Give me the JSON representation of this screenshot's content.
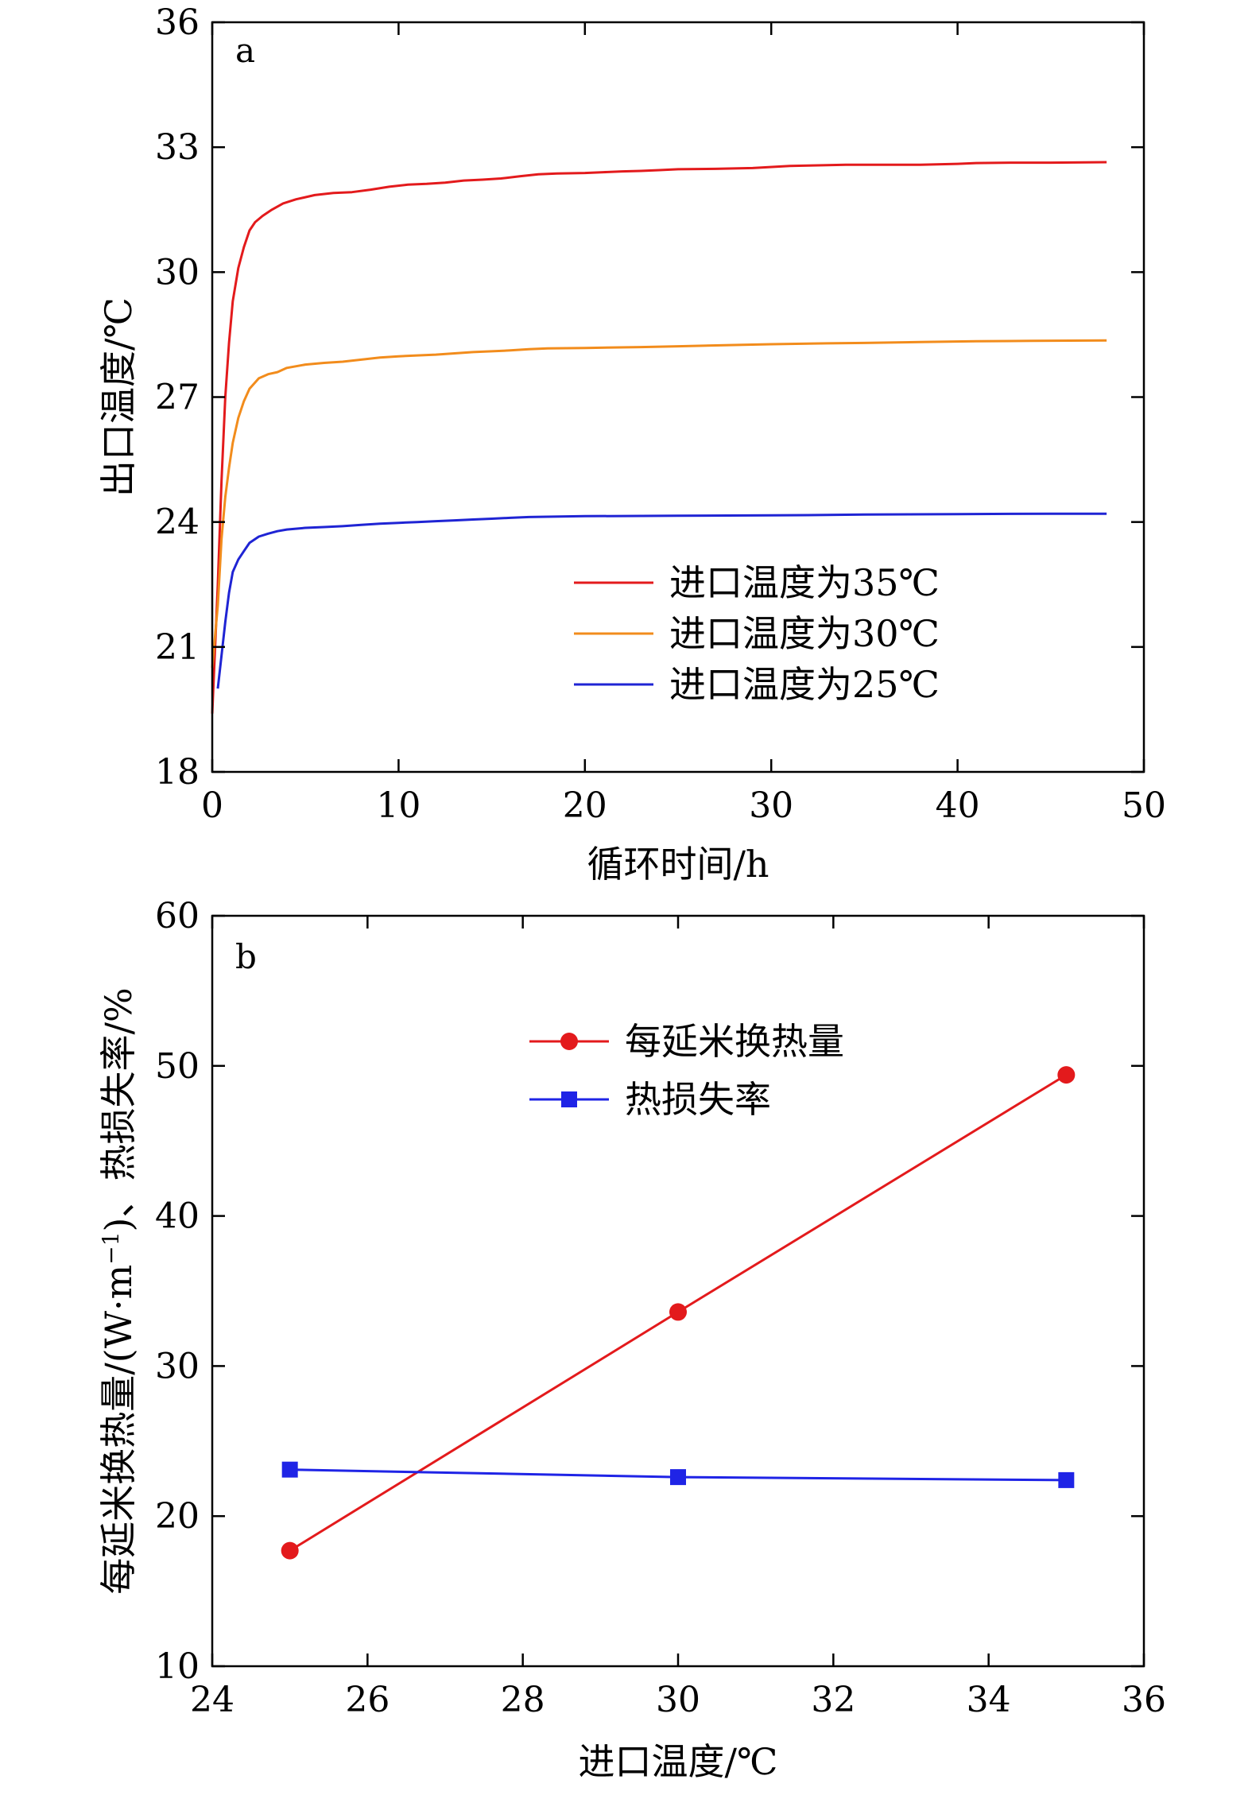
{
  "chart_data": [
    {
      "type": "line",
      "panel_label": "a",
      "xlabel": "循环时间/h",
      "ylabel": "出口温度/℃",
      "xlim": [
        0,
        50
      ],
      "ylim": [
        18,
        36
      ],
      "xticks": [
        0,
        10,
        20,
        30,
        40,
        50
      ],
      "yticks": [
        18,
        21,
        24,
        27,
        30,
        33,
        36
      ],
      "xtick_labels": [
        "0",
        "10",
        "20",
        "30",
        "40",
        "50"
      ],
      "ytick_labels": [
        "18",
        "21",
        "24",
        "27",
        "30",
        "33",
        "36"
      ],
      "grid": false,
      "legend_position": "lower-right",
      "series": [
        {
          "name": "进口温度为35℃",
          "color": "#e31a1c",
          "x": [
            0.0,
            0.3,
            0.5,
            0.7,
            0.9,
            1.1,
            1.4,
            1.7,
            2.0,
            2.3,
            2.7,
            3.2,
            3.8,
            4.5,
            5.5,
            6.5,
            7.5,
            8.5,
            9.5,
            10.5,
            11.5,
            12.5,
            13.5,
            14.5,
            15.5,
            16.5,
            17.5,
            18.5,
            20.0,
            21.0,
            22.0,
            23.0,
            24.0,
            25.0,
            27.0,
            29.0,
            31.0,
            32.0,
            34.0,
            36.0,
            38.0,
            40.0,
            41.0,
            43.0,
            45.0,
            48.0
          ],
          "values": [
            19.4,
            22.5,
            25.0,
            27.0,
            28.3,
            29.3,
            30.1,
            30.6,
            31.0,
            31.2,
            31.35,
            31.5,
            31.65,
            31.75,
            31.85,
            31.9,
            31.92,
            31.98,
            32.05,
            32.1,
            32.12,
            32.15,
            32.2,
            32.22,
            32.25,
            32.3,
            32.35,
            32.37,
            32.38,
            32.4,
            32.42,
            32.43,
            32.45,
            32.47,
            32.48,
            32.5,
            32.55,
            32.56,
            32.58,
            32.58,
            32.58,
            32.6,
            32.62,
            32.63,
            32.63,
            32.64
          ]
        },
        {
          "name": "进口温度为30℃",
          "color": "#f28c1c",
          "x": [
            0.0,
            0.3,
            0.5,
            0.7,
            0.9,
            1.1,
            1.4,
            1.7,
            2.0,
            2.5,
            3.0,
            3.5,
            4.0,
            5.0,
            6.0,
            7.0,
            8.0,
            9.0,
            10.0,
            11.0,
            12.0,
            13.0,
            14.0,
            15.0,
            16.0,
            17.0,
            18.0,
            20.0,
            23.0,
            25.0,
            28.0,
            30.0,
            33.0,
            35.0,
            38.0,
            41.0,
            44.0,
            48.0
          ],
          "values": [
            20.5,
            22.0,
            23.6,
            24.6,
            25.3,
            25.9,
            26.5,
            26.9,
            27.2,
            27.45,
            27.55,
            27.6,
            27.7,
            27.78,
            27.82,
            27.85,
            27.9,
            27.95,
            27.98,
            28.0,
            28.02,
            28.05,
            28.08,
            28.1,
            28.12,
            28.15,
            28.17,
            28.18,
            28.2,
            28.22,
            28.25,
            28.27,
            28.29,
            28.3,
            28.32,
            28.34,
            28.35,
            28.36
          ]
        },
        {
          "name": "进口温度为25℃",
          "color": "#1f24d4",
          "x": [
            0.3,
            0.5,
            0.7,
            0.9,
            1.1,
            1.4,
            1.7,
            2.0,
            2.5,
            3.0,
            3.5,
            4.0,
            5.0,
            6.0,
            7.0,
            8.0,
            9.0,
            10.0,
            11.0,
            12.0,
            13.0,
            14.0,
            15.0,
            16.0,
            17.0,
            20.0,
            25.0,
            30.0,
            33.0,
            35.0,
            40.0,
            45.0,
            48.0
          ],
          "values": [
            20.0,
            20.8,
            21.6,
            22.3,
            22.8,
            23.1,
            23.3,
            23.5,
            23.65,
            23.72,
            23.78,
            23.82,
            23.86,
            23.88,
            23.9,
            23.93,
            23.96,
            23.98,
            24.0,
            24.02,
            24.04,
            24.06,
            24.08,
            24.1,
            24.12,
            24.14,
            24.15,
            24.16,
            24.17,
            24.18,
            24.19,
            24.2,
            24.2
          ]
        }
      ]
    },
    {
      "type": "line",
      "panel_label": "b",
      "xlabel": "进口温度/℃",
      "ylabel_prefix": "每延米换热量/(W·m",
      "ylabel_sup": "−1",
      "ylabel_suffix": ")、热损失率/%",
      "xlim": [
        24,
        36
      ],
      "ylim": [
        10,
        60
      ],
      "xticks": [
        24,
        26,
        28,
        30,
        32,
        34,
        36
      ],
      "yticks": [
        10,
        20,
        30,
        40,
        50,
        60
      ],
      "xtick_labels": [
        "24",
        "26",
        "28",
        "30",
        "32",
        "34",
        "36"
      ],
      "ytick_labels": [
        "10",
        "20",
        "30",
        "40",
        "50",
        "60"
      ],
      "grid": false,
      "legend_position": "top-center",
      "series": [
        {
          "name": "每延米换热量",
          "color": "#e31a1c",
          "marker": "circle",
          "x": [
            25,
            30,
            35
          ],
          "values": [
            17.7,
            33.6,
            49.4
          ]
        },
        {
          "name": "热损失率",
          "color": "#1f24e6",
          "marker": "square",
          "x": [
            25,
            30,
            35
          ],
          "values": [
            23.1,
            22.6,
            22.4
          ]
        }
      ]
    }
  ]
}
